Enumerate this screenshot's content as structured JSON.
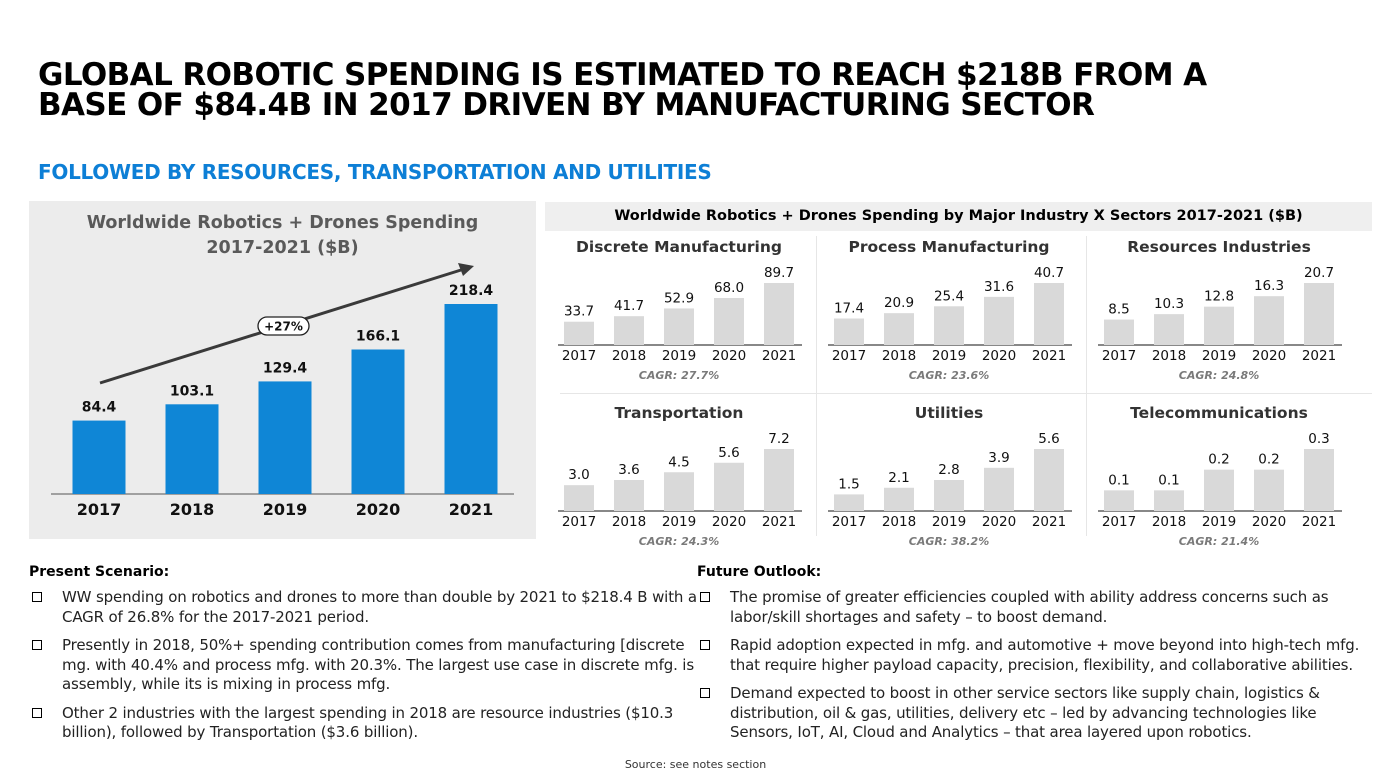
{
  "header": {
    "title_line1": "GLOBAL ROBOTIC SPENDING IS ESTIMATED TO REACH $218B FROM A",
    "title_line2": "BASE OF $84.4B IN 2017 DRIVEN BY MANUFACTURING SECTOR",
    "subtitle": "FOLLOWED BY RESOURCES, TRANSPORTATION AND UTILITIES"
  },
  "colors": {
    "accent_blue": "#0d7fd6",
    "bar_blue": "#0f86d6",
    "bar_grey": "#d9d9d9",
    "panel_grey": "#ececec"
  },
  "chart_data": [
    {
      "type": "bar",
      "title": "Worldwide Robotics + Drones Spending",
      "subtitle": "2017-2021 ($B)",
      "categories": [
        "2017",
        "2018",
        "2019",
        "2020",
        "2021"
      ],
      "values": [
        84.4,
        103.1,
        129.4,
        166.1,
        218.4
      ],
      "annotation": "+27%"
    },
    {
      "type": "bar",
      "title": "Worldwide Robotics + Drones Spending by Major Industry X Sectors 2017-2021 ($B)",
      "categories": [
        "2017",
        "2018",
        "2019",
        "2020",
        "2021"
      ],
      "series": [
        {
          "name": "Discrete Manufacturing",
          "values": [
            "33.7",
            "41.7",
            "52.9",
            "68.0",
            "89.7"
          ],
          "cagr": "CAGR: 27.7%"
        },
        {
          "name": "Process Manufacturing",
          "values": [
            "17.4",
            "20.9",
            "25.4",
            "31.6",
            "40.7"
          ],
          "cagr": "CAGR: 23.6%"
        },
        {
          "name": "Resources Industries",
          "values": [
            "8.5",
            "10.3",
            "12.8",
            "16.3",
            "20.7"
          ],
          "cagr": "CAGR: 24.8%"
        },
        {
          "name": "Transportation",
          "values": [
            "3.0",
            "3.6",
            "4.5",
            "5.6",
            "7.2"
          ],
          "cagr": "CAGR: 24.3%"
        },
        {
          "name": "Utilities",
          "values": [
            "1.5",
            "2.1",
            "2.8",
            "3.9",
            "5.6"
          ],
          "cagr": "CAGR: 38.2%"
        },
        {
          "name": "Telecommunications",
          "values": [
            "0.1",
            "0.1",
            "0.2",
            "0.2",
            "0.3"
          ],
          "cagr": "CAGR: 21.4%"
        }
      ]
    }
  ],
  "present": {
    "heading": "Present Scenario:",
    "bullets": [
      "WW spending on robotics and drones to more than double by 2021 to $218.4 B with a CAGR of 26.8% for the 2017-2021 period.",
      "Presently in 2018, 50%+ spending contribution comes from manufacturing [discrete mg. with 40.4% and process mfg. with 20.3%. The largest use case in discrete mfg. is assembly, while its is mixing in process mfg.",
      "Other 2 industries with the largest spending in 2018 are resource industries ($10.3 billion), followed by Transportation ($3.6 billion)."
    ]
  },
  "future": {
    "heading": "Future Outlook:",
    "bullets": [
      "The promise of greater efficiencies coupled with ability address concerns such as labor/skill shortages and safety – to boost demand.",
      "Rapid adoption expected in mfg. and automotive + move beyond into high-tech mfg. that require higher payload capacity, precision, flexibility, and collaborative abilities.",
      "Demand expected to boost in other service sectors like supply chain, logistics & distribution, oil & gas, utilities, delivery etc – led by advancing technologies like Sensors, IoT, AI, Cloud and Analytics – that area layered upon robotics."
    ]
  },
  "source": "Source: see notes section"
}
